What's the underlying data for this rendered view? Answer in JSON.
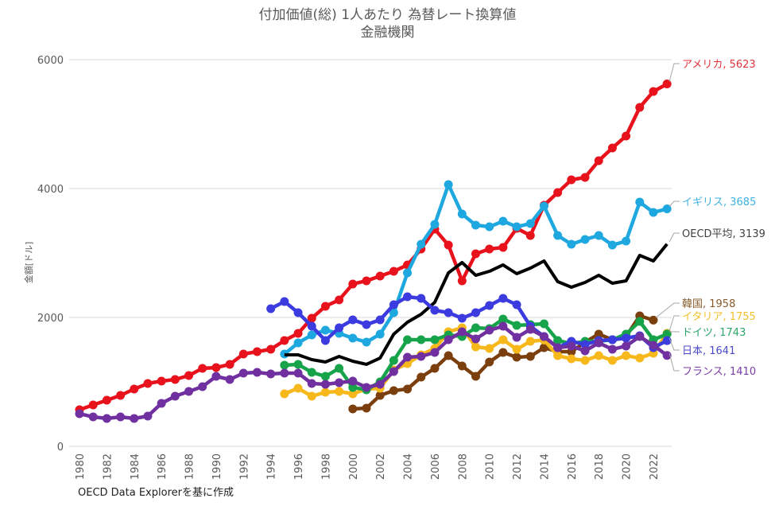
{
  "chart_data": {
    "type": "line",
    "title": "付加価値(総) 1人あたり 為替レート換算値",
    "subtitle": "金融機関",
    "xlabel": "",
    "ylabel": "金額[ドル]",
    "ylim": [
      0,
      6000
    ],
    "yticks": [
      0,
      2000,
      4000,
      6000
    ],
    "xlim": [
      1980,
      2023
    ],
    "xticks": [
      1980,
      1982,
      1984,
      1986,
      1988,
      1990,
      1992,
      1994,
      1996,
      1998,
      2000,
      2002,
      2004,
      2006,
      2008,
      2010,
      2012,
      2014,
      2016,
      2018,
      2020,
      2022
    ],
    "grid": true,
    "legend": "end-of-line labels (right)",
    "source_note": "OECD Data Explorerを基に作成",
    "series": [
      {
        "name": "アメリカ",
        "label": "アメリカ, 5623",
        "color": "#e8121c",
        "markers": true,
        "start": 1980,
        "values": [
          568,
          642,
          716,
          790,
          889,
          975,
          1012,
          1037,
          1099,
          1210,
          1222,
          1272,
          1432,
          1469,
          1506,
          1642,
          1753,
          1988,
          2173,
          2272,
          2519,
          2568,
          2642,
          2716,
          2815,
          3062,
          3370,
          3123,
          2568,
          2988,
          3062,
          3086,
          3383,
          3272,
          3741,
          3938,
          4136,
          4173,
          4432,
          4630,
          4815,
          5259,
          5506,
          5623
        ]
      },
      {
        "name": "イギリス",
        "label": "イギリス, 3685",
        "color": "#1fa8e0",
        "markers": true,
        "start": 1995,
        "values": [
          1432,
          1605,
          1728,
          1802,
          1753,
          1679,
          1617,
          1741,
          2074,
          2691,
          3136,
          3444,
          4062,
          3605,
          3432,
          3407,
          3494,
          3407,
          3457,
          3728,
          3272,
          3136,
          3210,
          3272,
          3123,
          3185,
          3790,
          3630,
          3685
        ]
      },
      {
        "name": "OECD平均",
        "label": "OECD平均, 3139",
        "color": "#000000",
        "markers": false,
        "start": 1995,
        "values": [
          1420,
          1420,
          1346,
          1309,
          1395,
          1321,
          1272,
          1370,
          1741,
          1926,
          2049,
          2235,
          2691,
          2852,
          2654,
          2716,
          2815,
          2679,
          2765,
          2877,
          2556,
          2469,
          2543,
          2654,
          2531,
          2568,
          2963,
          2877,
          3139
        ]
      },
      {
        "name": "韓国",
        "label": "韓国, 1958",
        "color": "#7b3f0e",
        "markers": true,
        "start": 2000,
        "values": [
          580,
          593,
          790,
          864,
          889,
          1074,
          1210,
          1407,
          1247,
          1086,
          1309,
          1457,
          1383,
          1395,
          1531,
          1469,
          1469,
          1617,
          1741,
          1654,
          1704,
          2025,
          1958
        ]
      },
      {
        "name": "イタリア",
        "label": "イタリア, 1755",
        "color": "#f7b81b",
        "markers": true,
        "start": 1995,
        "values": [
          815,
          901,
          778,
          840,
          852,
          815,
          889,
          901,
          1185,
          1284,
          1420,
          1519,
          1778,
          1840,
          1543,
          1519,
          1654,
          1506,
          1630,
          1650,
          1407,
          1358,
          1333,
          1407,
          1333,
          1407,
          1370,
          1444,
          1755
        ]
      },
      {
        "name": "ドイツ",
        "label": "ドイツ, 1743",
        "color": "#16a34a",
        "markers": true,
        "start": 1995,
        "values": [
          1259,
          1272,
          1148,
          1086,
          1210,
          914,
          877,
          1000,
          1333,
          1654,
          1654,
          1654,
          1728,
          1704,
          1840,
          1827,
          1975,
          1877,
          1889,
          1901,
          1642,
          1593,
          1630,
          1630,
          1654,
          1741,
          1938,
          1654,
          1743
        ]
      },
      {
        "name": "日本",
        "label": "日本, 1641",
        "color": "#3b3be0",
        "markers": true,
        "start": 1994,
        "values": [
          2136,
          2247,
          2074,
          1864,
          1642,
          1840,
          1963,
          1889,
          1963,
          2197,
          2321,
          2296,
          2111,
          2074,
          1988,
          2074,
          2185,
          2296,
          2197,
          1864,
          1704,
          1531,
          1630,
          1580,
          1642,
          1654,
          1679,
          1716,
          1531,
          1641
        ]
      },
      {
        "name": "フランス",
        "label": "フランス, 1410",
        "color": "#7030a0",
        "markers": true,
        "start": 1980,
        "values": [
          506,
          457,
          432,
          457,
          432,
          469,
          667,
          778,
          852,
          926,
          1086,
          1037,
          1136,
          1148,
          1123,
          1136,
          1136,
          975,
          963,
          988,
          1012,
          914,
          963,
          1160,
          1383,
          1395,
          1457,
          1654,
          1778,
          1667,
          1802,
          1864,
          1691,
          1815,
          1704,
          1531,
          1556,
          1481,
          1605,
          1506,
          1556,
          1704,
          1568,
          1410
        ]
      }
    ],
    "end_labels": [
      {
        "series": "アメリカ",
        "text": "アメリカ, 5623",
        "color": "#e0323a"
      },
      {
        "series": "イギリス",
        "text": "イギリス, 3685",
        "color": "#3fb2e3"
      },
      {
        "series": "OECD平均",
        "text": "OECD平均, 3139",
        "color": "#404040"
      },
      {
        "series": "韓国",
        "text": "韓国, 1958",
        "color": "#8a5a2b"
      },
      {
        "series": "イタリア",
        "text": "イタリア, 1755",
        "color": "#f2c02a"
      },
      {
        "series": "ドイツ",
        "text": "ドイツ, 1743",
        "color": "#2ea56a"
      },
      {
        "series": "日本",
        "text": "日本, 1641",
        "color": "#4a4ac8"
      },
      {
        "series": "フランス",
        "text": "フランス, 1410",
        "color": "#7a3ca8"
      }
    ]
  }
}
